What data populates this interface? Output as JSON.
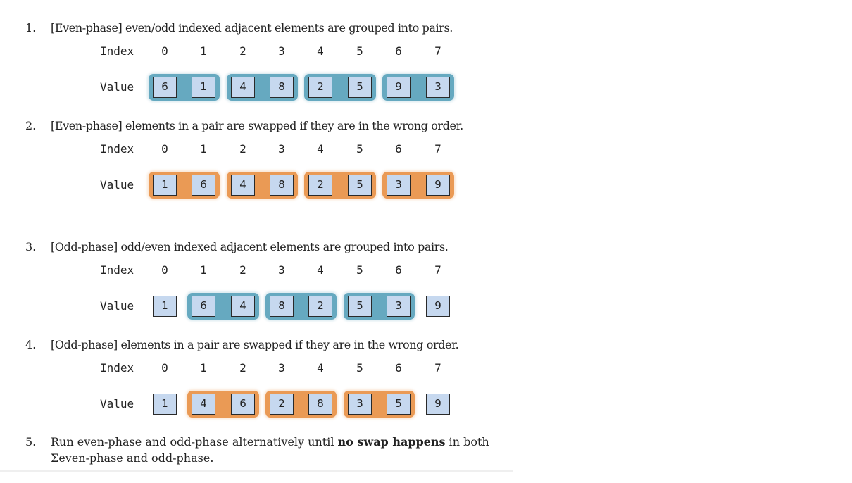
{
  "steps": [
    {
      "number": "1.",
      "text": "[Even-phase] even/odd indexed adjacent elements are grouped into pairs.",
      "index_label": "Index",
      "value_label": "Value",
      "indices": [
        "0",
        "1",
        "2",
        "3",
        "4",
        "5",
        "6",
        "7"
      ],
      "values": [
        "6",
        "1",
        "4",
        "8",
        "2",
        "5",
        "9",
        "3"
      ],
      "highlight": "blue",
      "pairs": [
        [
          0,
          1
        ],
        [
          2,
          3
        ],
        [
          4,
          5
        ],
        [
          6,
          7
        ]
      ]
    },
    {
      "number": "2.",
      "text": "[Even-phase] elements in a pair are swapped if they are in the wrong order.",
      "index_label": "Index",
      "value_label": "Value",
      "indices": [
        "0",
        "1",
        "2",
        "3",
        "4",
        "5",
        "6",
        "7"
      ],
      "values": [
        "1",
        "6",
        "4",
        "8",
        "2",
        "5",
        "3",
        "9"
      ],
      "highlight": "orange",
      "pairs": [
        [
          0,
          1
        ],
        [
          2,
          3
        ],
        [
          4,
          5
        ],
        [
          6,
          7
        ]
      ]
    },
    {
      "number": "3.",
      "text": "[Odd-phase] odd/even indexed adjacent elements are grouped into pairs.",
      "index_label": "Index",
      "value_label": "Value",
      "indices": [
        "0",
        "1",
        "2",
        "3",
        "4",
        "5",
        "6",
        "7"
      ],
      "values": [
        "1",
        "6",
        "4",
        "8",
        "2",
        "5",
        "3",
        "9"
      ],
      "highlight": "blue",
      "pairs": [
        [
          1,
          2
        ],
        [
          3,
          4
        ],
        [
          5,
          6
        ]
      ]
    },
    {
      "number": "4.",
      "text": "[Odd-phase] elements in a pair are swapped if they are in the wrong order.",
      "index_label": "Index",
      "value_label": "Value",
      "indices": [
        "0",
        "1",
        "2",
        "3",
        "4",
        "5",
        "6",
        "7"
      ],
      "values": [
        "1",
        "4",
        "6",
        "2",
        "8",
        "3",
        "5",
        "9"
      ],
      "highlight": "orange",
      "pairs": [
        [
          1,
          2
        ],
        [
          3,
          4
        ],
        [
          5,
          6
        ]
      ]
    }
  ],
  "step5": {
    "number": "5.",
    "line1_before": "Run even-phase and odd-phase alternatively until ",
    "line1_bold": "no swap happens",
    "line1_after": " in both",
    "line2": "Σeven-phase and odd-phase."
  },
  "colors": {
    "pair_blue": "#66a9c0",
    "pair_orange": "#ea9a55",
    "cell_fill": "#c6d8ef",
    "cell_border": "#2a2a2a"
  }
}
